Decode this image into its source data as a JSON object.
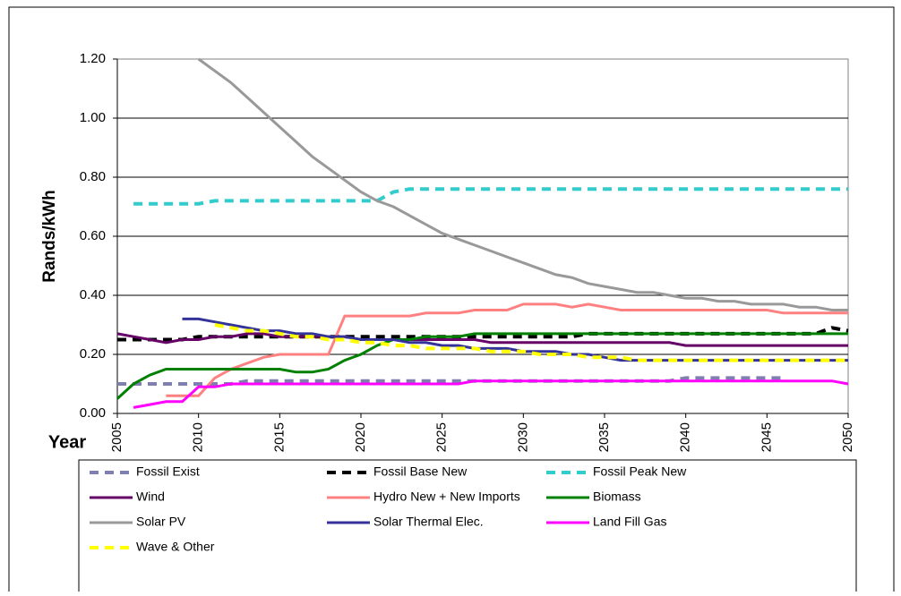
{
  "chart_data": {
    "type": "line",
    "y_label": "Rands/kWh",
    "x_label": "Year",
    "x": [
      2005,
      2006,
      2007,
      2008,
      2009,
      2010,
      2011,
      2012,
      2013,
      2014,
      2015,
      2016,
      2017,
      2018,
      2019,
      2020,
      2021,
      2022,
      2023,
      2024,
      2025,
      2026,
      2027,
      2028,
      2029,
      2030,
      2031,
      2032,
      2033,
      2034,
      2035,
      2036,
      2037,
      2038,
      2039,
      2040,
      2041,
      2042,
      2043,
      2044,
      2045,
      2046,
      2047,
      2048,
      2049,
      2050
    ],
    "xlim": [
      2005,
      2050
    ],
    "xticks": [
      2005,
      2010,
      2015,
      2020,
      2025,
      2030,
      2035,
      2040,
      2045,
      2050
    ],
    "ylim": [
      0,
      1.2
    ],
    "yticks": [
      {
        "value": 0,
        "label": "0.00"
      },
      {
        "value": 0.2,
        "label": "0.20"
      },
      {
        "value": 0.4,
        "label": "0.40"
      },
      {
        "value": 0.6,
        "label": "0.60"
      },
      {
        "value": 0.8,
        "label": "0.80"
      },
      {
        "value": 1.0,
        "label": "1.00"
      },
      {
        "value": 1.2,
        "label": "1.20"
      }
    ],
    "grid": true,
    "series": [
      {
        "name": "Fossil Exist",
        "color": "#8080b0",
        "dash": true,
        "values": [
          0.1,
          0.1,
          0.1,
          0.1,
          0.1,
          0.1,
          0.1,
          0.1,
          0.11,
          0.11,
          0.11,
          0.11,
          0.11,
          0.11,
          0.11,
          0.11,
          0.11,
          0.11,
          0.11,
          0.11,
          0.11,
          0.11,
          0.11,
          0.11,
          0.11,
          0.11,
          0.11,
          0.11,
          0.11,
          0.11,
          0.11,
          0.11,
          0.11,
          0.11,
          0.11,
          0.12,
          0.12,
          0.12,
          0.12,
          0.12,
          0.12,
          0.12,
          null,
          null,
          null,
          null
        ]
      },
      {
        "name": "Fossil Base New",
        "color": "#000000",
        "dash": true,
        "values": [
          0.25,
          0.25,
          0.25,
          0.25,
          0.25,
          0.26,
          0.26,
          0.26,
          0.26,
          0.26,
          0.26,
          0.26,
          0.26,
          0.26,
          0.26,
          0.26,
          0.26,
          0.26,
          0.26,
          0.26,
          0.26,
          0.26,
          0.26,
          0.26,
          0.26,
          0.26,
          0.26,
          0.26,
          0.26,
          0.27,
          0.27,
          0.27,
          0.27,
          0.27,
          0.27,
          0.27,
          0.27,
          0.27,
          0.27,
          0.27,
          0.27,
          0.27,
          0.27,
          0.27,
          0.29,
          0.28
        ]
      },
      {
        "name": "Fossil Peak New",
        "color": "#33cccc",
        "dash": true,
        "values": [
          null,
          0.71,
          0.71,
          0.71,
          0.71,
          0.71,
          0.72,
          0.72,
          0.72,
          0.72,
          0.72,
          0.72,
          0.72,
          0.72,
          0.72,
          0.72,
          0.72,
          0.75,
          0.76,
          0.76,
          0.76,
          0.76,
          0.76,
          0.76,
          0.76,
          0.76,
          0.76,
          0.76,
          0.76,
          0.76,
          0.76,
          0.76,
          0.76,
          0.76,
          0.76,
          0.76,
          0.76,
          0.76,
          0.76,
          0.76,
          0.76,
          0.76,
          0.76,
          0.76,
          0.76,
          0.76
        ]
      },
      {
        "name": "Wind",
        "color": "#660066",
        "dash": false,
        "values": [
          0.27,
          0.26,
          0.25,
          0.24,
          0.25,
          0.25,
          0.26,
          0.26,
          0.27,
          0.27,
          0.26,
          0.26,
          0.26,
          0.26,
          0.26,
          0.25,
          0.25,
          0.25,
          0.25,
          0.25,
          0.25,
          0.25,
          0.25,
          0.24,
          0.24,
          0.24,
          0.24,
          0.24,
          0.24,
          0.24,
          0.24,
          0.24,
          0.24,
          0.24,
          0.24,
          0.23,
          0.23,
          0.23,
          0.23,
          0.23,
          0.23,
          0.23,
          0.23,
          0.23,
          0.23,
          0.23
        ]
      },
      {
        "name": "Hydro New + New Imports",
        "color": "#ff8080",
        "dash": false,
        "values": [
          null,
          null,
          null,
          0.06,
          0.06,
          0.06,
          0.12,
          0.15,
          0.17,
          0.19,
          0.2,
          0.2,
          0.2,
          0.2,
          0.33,
          0.33,
          0.33,
          0.33,
          0.33,
          0.34,
          0.34,
          0.34,
          0.35,
          0.35,
          0.35,
          0.37,
          0.37,
          0.37,
          0.36,
          0.37,
          0.36,
          0.35,
          0.35,
          0.35,
          0.35,
          0.35,
          0.35,
          0.35,
          0.35,
          0.35,
          0.35,
          0.34,
          0.34,
          0.34,
          0.34,
          0.34
        ]
      },
      {
        "name": "Biomass",
        "color": "#008000",
        "dash": false,
        "values": [
          0.05,
          0.1,
          0.13,
          0.15,
          0.15,
          0.15,
          0.15,
          0.15,
          0.15,
          0.15,
          0.15,
          0.14,
          0.14,
          0.15,
          0.18,
          0.2,
          0.23,
          0.25,
          0.25,
          0.26,
          0.26,
          0.26,
          0.27,
          0.27,
          0.27,
          0.27,
          0.27,
          0.27,
          0.27,
          0.27,
          0.27,
          0.27,
          0.27,
          0.27,
          0.27,
          0.27,
          0.27,
          0.27,
          0.27,
          0.27,
          0.27,
          0.27,
          0.27,
          0.27,
          0.27,
          0.27
        ]
      },
      {
        "name": "Solar PV",
        "color": "#999999",
        "dash": false,
        "values": [
          null,
          null,
          null,
          null,
          null,
          1.2,
          1.16,
          1.12,
          1.07,
          1.02,
          0.97,
          0.92,
          0.87,
          0.83,
          0.79,
          0.75,
          0.72,
          0.7,
          0.67,
          0.64,
          0.61,
          0.59,
          0.57,
          0.55,
          0.53,
          0.51,
          0.49,
          0.47,
          0.46,
          0.44,
          0.43,
          0.42,
          0.41,
          0.41,
          0.4,
          0.39,
          0.39,
          0.38,
          0.38,
          0.37,
          0.37,
          0.37,
          0.36,
          0.36,
          0.35,
          0.35
        ]
      },
      {
        "name": "Solar Thermal Elec.",
        "color": "#333399",
        "dash": false,
        "values": [
          null,
          null,
          null,
          null,
          0.32,
          0.32,
          0.31,
          0.3,
          0.29,
          0.28,
          0.28,
          0.27,
          0.27,
          0.26,
          0.26,
          0.25,
          0.25,
          0.25,
          0.24,
          0.24,
          0.23,
          0.23,
          0.22,
          0.22,
          0.22,
          0.21,
          0.21,
          0.21,
          0.2,
          0.2,
          0.19,
          0.18,
          0.18,
          0.18,
          0.18,
          0.18,
          0.18,
          0.18,
          0.18,
          0.18,
          0.18,
          0.18,
          0.18,
          0.18,
          0.18,
          0.18
        ]
      },
      {
        "name": "Land Fill Gas",
        "color": "#ff00ff",
        "dash": false,
        "values": [
          null,
          0.02,
          0.03,
          0.04,
          0.04,
          0.09,
          0.09,
          0.1,
          0.1,
          0.1,
          0.1,
          0.1,
          0.1,
          0.1,
          0.1,
          0.1,
          0.1,
          0.1,
          0.1,
          0.1,
          0.1,
          0.1,
          0.11,
          0.11,
          0.11,
          0.11,
          0.11,
          0.11,
          0.11,
          0.11,
          0.11,
          0.11,
          0.11,
          0.11,
          0.11,
          0.11,
          0.11,
          0.11,
          0.11,
          0.11,
          0.11,
          0.11,
          0.11,
          0.11,
          0.11,
          0.1
        ]
      },
      {
        "name": "Wave & Other",
        "color": "#ffff00",
        "dash": true,
        "values": [
          null,
          null,
          null,
          null,
          null,
          null,
          0.3,
          0.29,
          0.28,
          0.28,
          0.27,
          0.26,
          0.26,
          0.25,
          0.25,
          0.24,
          0.24,
          0.23,
          0.23,
          0.22,
          0.22,
          0.22,
          0.22,
          0.21,
          0.21,
          0.21,
          0.2,
          0.2,
          0.2,
          0.19,
          0.19,
          0.19,
          0.18,
          0.18,
          0.18,
          0.18,
          0.18,
          0.18,
          0.18,
          0.18,
          0.18,
          0.18,
          0.18,
          0.18,
          0.18,
          0.18
        ]
      }
    ]
  }
}
